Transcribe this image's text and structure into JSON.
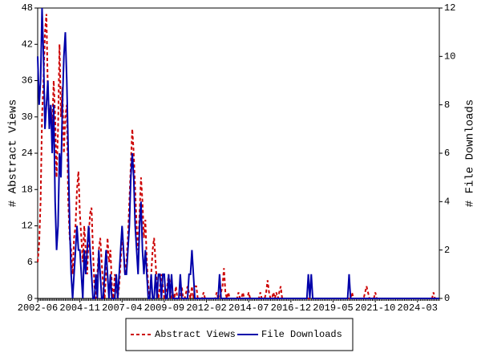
{
  "chart_data": {
    "type": "line",
    "y_label": "# Abstract Views",
    "y2_label": "# File Downloads",
    "categories": [
      "2002-06",
      null,
      null,
      null,
      null,
      null,
      null,
      null,
      null,
      null,
      null,
      null,
      null,
      null,
      null,
      null,
      null,
      null,
      null,
      null,
      null,
      null,
      null,
      null,
      null,
      null,
      null,
      null,
      null,
      "2004-11",
      null,
      null,
      null,
      null,
      null,
      null,
      null,
      null,
      null,
      null,
      null,
      null,
      null,
      null,
      null,
      null,
      null,
      null,
      null,
      null,
      null,
      null,
      null,
      null,
      null,
      null,
      null,
      null,
      "2007-04",
      null,
      null,
      null,
      null,
      null,
      null,
      null,
      null,
      null,
      null,
      null,
      null,
      null,
      null,
      null,
      null,
      null,
      null,
      null,
      null,
      null,
      null,
      null,
      null,
      null,
      null,
      null,
      null,
      "2009-09",
      null,
      null,
      null,
      null,
      null,
      null,
      null,
      null,
      null,
      null,
      null,
      null,
      null,
      null,
      null,
      null,
      null,
      null,
      null,
      null,
      null,
      null,
      null,
      null,
      null,
      null,
      null,
      null,
      "2012-02",
      null,
      null,
      null,
      null,
      null,
      null,
      null,
      null,
      null,
      null,
      null,
      null,
      null,
      null,
      null,
      null,
      null,
      null,
      null,
      null,
      null,
      null,
      null,
      null,
      null,
      null,
      null,
      null,
      "2014-07",
      null,
      null,
      null,
      null,
      null,
      null,
      null,
      null,
      null,
      null,
      null,
      null,
      null,
      null,
      null,
      null,
      null,
      null,
      null,
      null,
      null,
      null,
      null,
      null,
      null,
      null,
      null,
      null,
      "2016-12",
      null,
      null,
      null,
      null,
      null,
      null,
      null,
      null,
      null,
      null,
      null,
      null,
      null,
      null,
      null,
      null,
      null,
      null,
      null,
      null,
      null,
      null,
      null,
      null,
      null,
      null,
      null,
      null,
      "2019-05",
      null,
      null,
      null,
      null,
      null,
      null,
      null,
      null,
      null,
      null,
      null,
      null,
      null,
      null,
      null,
      null,
      null,
      null,
      null,
      null,
      null,
      null,
      null,
      null,
      null,
      null,
      null,
      null,
      "2021-10",
      null,
      null,
      null,
      null,
      null,
      null,
      null,
      null,
      null,
      null,
      null,
      null,
      null,
      null,
      null,
      null,
      null,
      null,
      null,
      null,
      null,
      null,
      null,
      null,
      null,
      null,
      null,
      null,
      "2024-03",
      null,
      null,
      null,
      null,
      null,
      null,
      null,
      null,
      null,
      null,
      null,
      null,
      null,
      null,
      null
    ],
    "series": [
      {
        "name": "Abstract Views",
        "color": "#cc0000",
        "dash": true,
        "values": [
          6,
          9,
          16,
          30,
          36,
          44,
          47,
          34,
          30,
          32,
          28,
          36,
          30,
          20,
          28,
          42,
          30,
          35,
          24,
          30,
          32,
          16,
          10,
          8,
          4,
          10,
          12,
          18,
          21,
          14,
          10,
          6,
          12,
          8,
          4,
          10,
          14,
          15,
          8,
          2,
          0,
          4,
          8,
          10,
          6,
          2,
          0,
          4,
          10,
          6,
          8,
          2,
          0,
          4,
          2,
          0,
          2,
          6,
          10,
          8,
          4,
          6,
          10,
          16,
          22,
          28,
          24,
          18,
          12,
          8,
          14,
          20,
          16,
          10,
          13,
          6,
          2,
          0,
          4,
          8,
          10,
          6,
          2,
          0,
          2,
          4,
          2,
          0,
          0,
          2,
          4,
          2,
          0,
          1,
          0,
          2,
          0,
          0,
          0,
          2,
          0,
          0,
          1,
          2,
          1,
          0,
          2,
          0,
          2,
          2,
          0,
          0,
          0,
          0,
          1,
          0,
          0,
          0,
          0,
          0,
          0,
          0,
          0,
          1,
          0,
          0,
          1,
          2,
          5,
          1,
          0,
          1,
          0,
          0,
          0,
          0,
          0,
          0,
          1,
          0,
          0,
          1,
          0,
          0,
          0,
          1,
          0,
          0,
          0,
          0,
          0,
          0,
          0,
          1,
          0,
          0,
          0,
          1,
          3,
          1,
          0,
          0,
          1,
          0,
          1,
          0,
          1,
          2,
          0,
          0,
          0,
          0,
          0,
          0,
          0,
          0,
          0,
          0,
          0,
          0,
          0,
          0,
          0,
          0,
          0,
          0,
          0,
          0,
          0,
          0,
          0,
          0,
          0,
          0,
          0,
          0,
          0,
          0,
          0,
          0,
          0,
          0,
          0,
          0,
          0,
          0,
          0,
          0,
          0,
          0,
          0,
          0,
          0,
          0,
          0,
          0,
          1,
          0,
          0,
          0,
          0,
          0,
          0,
          0,
          0,
          1,
          2,
          1,
          0,
          0,
          0,
          0,
          1,
          0,
          0,
          0,
          0,
          0,
          0,
          0,
          0,
          0,
          0,
          0,
          0,
          0,
          0,
          0,
          0,
          0,
          0,
          0,
          0,
          0,
          0,
          0,
          0,
          0,
          0,
          0,
          0,
          0,
          0,
          0,
          0,
          0,
          0,
          0,
          0,
          0,
          0,
          0,
          1,
          0,
          0,
          0,
          0
        ]
      },
      {
        "name": "File Downloads",
        "color": "#0000aa",
        "dash": false,
        "axis": "y2",
        "values": [
          10,
          8,
          9,
          12,
          10,
          7,
          8,
          9,
          7,
          8,
          6,
          8,
          4,
          2,
          3,
          6,
          5,
          8,
          10,
          11,
          9,
          6,
          3,
          1,
          0,
          1,
          2,
          3,
          2,
          2,
          1,
          0,
          2,
          1,
          2,
          3,
          2,
          1,
          0,
          0,
          1,
          0,
          2,
          1,
          0,
          0,
          1,
          2,
          1,
          0,
          1,
          0,
          0,
          0,
          1,
          0,
          1,
          2,
          3,
          2,
          1,
          1,
          2,
          3,
          5,
          6,
          5,
          3,
          2,
          1,
          3,
          4,
          2,
          1,
          2,
          1,
          0,
          0,
          1,
          0,
          0,
          1,
          0,
          1,
          1,
          0,
          1,
          1,
          0,
          0,
          1,
          0,
          1,
          0,
          0,
          0,
          0,
          0,
          1,
          0,
          0,
          0,
          0,
          0,
          1,
          1,
          2,
          1,
          0,
          0,
          0,
          0,
          0,
          0,
          0,
          0,
          0,
          0,
          0,
          0,
          0,
          0,
          0,
          0,
          0,
          1,
          0,
          0,
          0,
          0,
          0,
          0,
          0,
          0,
          0,
          0,
          0,
          0,
          0,
          0,
          0,
          0,
          0,
          0,
          0,
          0,
          0,
          0,
          0,
          0,
          0,
          0,
          0,
          0,
          0,
          0,
          0,
          0,
          0,
          0,
          0,
          0,
          0,
          0,
          0,
          0,
          0,
          0,
          0,
          0,
          0,
          0,
          0,
          0,
          0,
          0,
          0,
          0,
          0,
          0,
          0,
          0,
          0,
          0,
          0,
          0,
          1,
          0,
          1,
          0,
          0,
          0,
          0,
          0,
          0,
          0,
          0,
          0,
          0,
          0,
          0,
          0,
          0,
          0,
          0,
          0,
          0,
          0,
          0,
          0,
          0,
          0,
          0,
          0,
          1,
          0,
          0,
          0,
          0,
          0,
          0,
          0,
          0,
          0,
          0,
          0,
          0,
          0,
          0,
          0,
          0,
          0,
          0,
          0,
          0,
          0,
          0,
          0,
          0,
          0,
          0,
          0,
          0,
          0,
          0,
          0,
          0,
          0,
          0,
          0,
          0,
          0,
          0,
          0,
          0,
          0,
          0,
          0,
          0,
          0,
          0,
          0,
          0,
          0,
          0,
          0,
          0,
          0,
          0,
          0,
          0,
          0,
          0,
          0,
          0,
          0,
          0
        ]
      }
    ],
    "ylim": [
      0,
      48
    ],
    "yticks": [
      0,
      6,
      12,
      18,
      24,
      30,
      36,
      42,
      48
    ],
    "y2lim": [
      0,
      12
    ],
    "y2ticks": [
      0,
      2,
      4,
      6,
      8,
      10,
      12
    ],
    "legend": "bottom"
  }
}
